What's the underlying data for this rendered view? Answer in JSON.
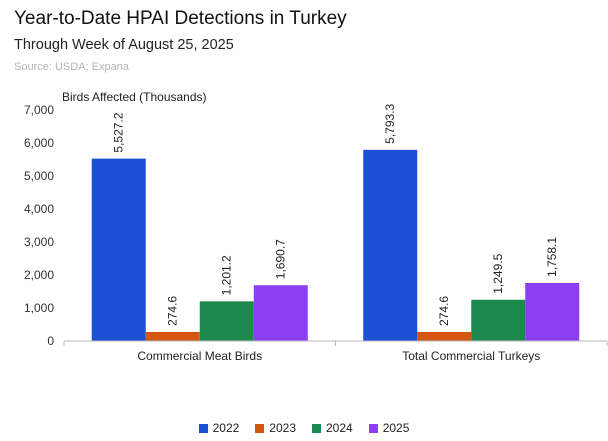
{
  "header": {
    "title": "Year-to-Date HPAI Detections in Turkey",
    "subtitle": "Through Week of August 25, 2025",
    "source": "Source: USDA; Expana"
  },
  "chart_data": {
    "type": "bar",
    "title": "Year-to-Date HPAI Detections in Turkey",
    "subtitle": "Through Week of August 25, 2025",
    "ylabel": "Birds Affected (Thousands)",
    "xlabel": "",
    "ylim": [
      0,
      7000
    ],
    "yticks": [
      0,
      1000,
      2000,
      3000,
      4000,
      5000,
      6000,
      7000
    ],
    "ytick_labels": [
      "0",
      "1,000",
      "2,000",
      "3,000",
      "4,000",
      "5,000",
      "6,000",
      "7,000"
    ],
    "categories": [
      "Commercial Meat Birds",
      "Total Commercial Turkeys"
    ],
    "series": [
      {
        "name": "2022",
        "color": "#1a4fd6",
        "values": [
          5527.2,
          5793.3
        ],
        "labels": [
          "5,527.2",
          "5,793.3"
        ]
      },
      {
        "name": "2023",
        "color": "#d4560f",
        "values": [
          274.6,
          274.6
        ],
        "labels": [
          "274.6",
          "274.6"
        ]
      },
      {
        "name": "2024",
        "color": "#1b8a4c",
        "values": [
          1201.2,
          1249.5
        ],
        "labels": [
          "1,201.2",
          "1,249.5"
        ]
      },
      {
        "name": "2025",
        "color": "#8c3ff0",
        "values": [
          1690.7,
          1758.1
        ],
        "labels": [
          "1,690.7",
          "1,758.1"
        ]
      }
    ],
    "grid": false,
    "legend": "bottom"
  }
}
